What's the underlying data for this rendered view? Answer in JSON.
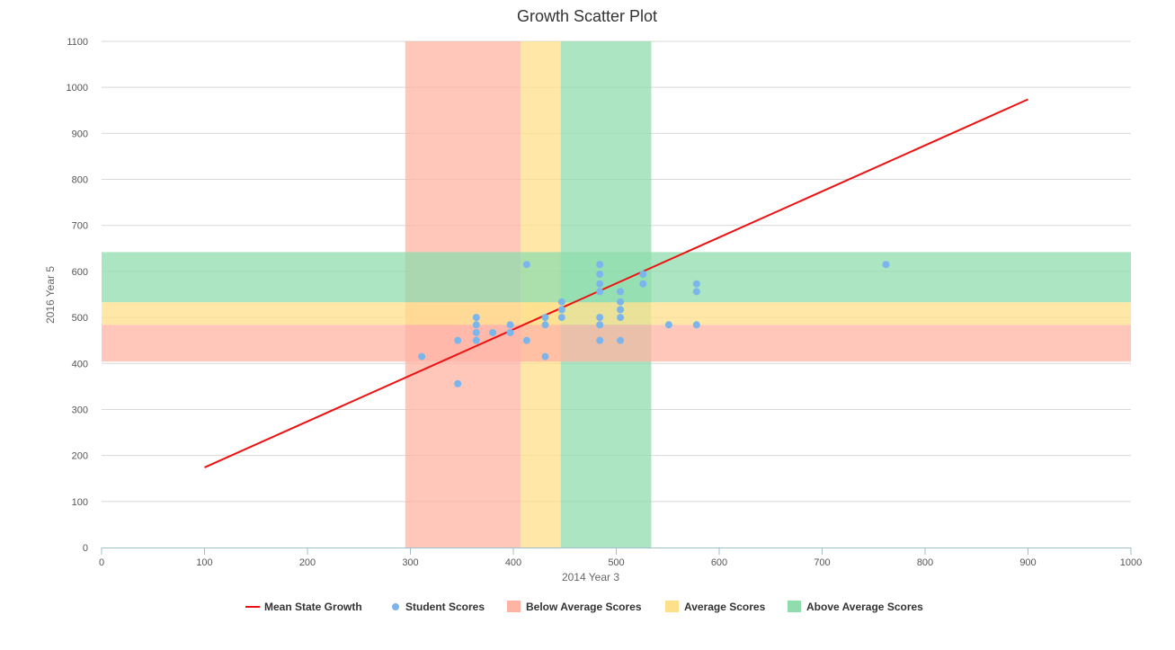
{
  "chart_data": {
    "type": "scatter",
    "title": "Growth Scatter Plot",
    "xlabel": "2014 Year 3",
    "ylabel": "2016 Year 5",
    "xlim": [
      0,
      1000
    ],
    "ylim": [
      0,
      1100
    ],
    "x_ticks": [
      0,
      100,
      200,
      300,
      400,
      500,
      600,
      700,
      800,
      900,
      1000
    ],
    "y_ticks": [
      0,
      100,
      200,
      300,
      400,
      500,
      600,
      700,
      800,
      900,
      1000,
      1100
    ],
    "grid": "horizontal",
    "legend_position": "bottom-center",
    "bands": [
      {
        "name": "Below Average Scores",
        "axis": "x",
        "from": 295,
        "to": 407,
        "color": "#ffb3a3"
      },
      {
        "name": "Average Scores",
        "axis": "x",
        "from": 407,
        "to": 446,
        "color": "#ffe08a"
      },
      {
        "name": "Above Average Scores",
        "axis": "x",
        "from": 446,
        "to": 534,
        "color": "#8fdcac"
      },
      {
        "name": "Below Average Scores",
        "axis": "y",
        "from": 404,
        "to": 484,
        "color": "#ffb3a3"
      },
      {
        "name": "Average Scores",
        "axis": "y",
        "from": 484,
        "to": 533,
        "color": "#ffe08a"
      },
      {
        "name": "Above Average Scores",
        "axis": "y",
        "from": 533,
        "to": 642,
        "color": "#8fdcac"
      }
    ],
    "series": [
      {
        "name": "Mean State Growth",
        "type": "line",
        "color": "#ee1111",
        "points": [
          [
            100,
            174
          ],
          [
            900,
            974
          ]
        ]
      },
      {
        "name": "Student Scores",
        "type": "scatter",
        "color": "#7cb5ec",
        "points": [
          [
            311,
            415
          ],
          [
            346,
            356
          ],
          [
            346,
            450
          ],
          [
            364,
            450
          ],
          [
            364,
            467
          ],
          [
            364,
            484
          ],
          [
            364,
            500
          ],
          [
            380,
            467
          ],
          [
            397,
            467
          ],
          [
            397,
            484
          ],
          [
            413,
            615
          ],
          [
            413,
            450
          ],
          [
            431,
            415
          ],
          [
            431,
            484
          ],
          [
            431,
            500
          ],
          [
            447,
            500
          ],
          [
            447,
            517
          ],
          [
            447,
            534
          ],
          [
            484,
            615
          ],
          [
            484,
            594
          ],
          [
            484,
            573
          ],
          [
            484,
            556
          ],
          [
            484,
            500
          ],
          [
            484,
            484
          ],
          [
            484,
            450
          ],
          [
            504,
            556
          ],
          [
            504,
            534
          ],
          [
            504,
            517
          ],
          [
            504,
            500
          ],
          [
            504,
            450
          ],
          [
            526,
            594
          ],
          [
            526,
            573
          ],
          [
            551,
            484
          ],
          [
            578,
            573
          ],
          [
            578,
            556
          ],
          [
            578,
            484
          ],
          [
            762,
            615
          ]
        ]
      }
    ],
    "legend": [
      {
        "label": "Mean State Growth",
        "symbol": "line",
        "color": "#ee1111"
      },
      {
        "label": "Student Scores",
        "symbol": "dot",
        "color": "#7cb5ec"
      },
      {
        "label": "Below Average Scores",
        "symbol": "rect",
        "color": "#ffb3a3"
      },
      {
        "label": "Average Scores",
        "symbol": "rect",
        "color": "#ffe08a"
      },
      {
        "label": "Above Average Scores",
        "symbol": "rect",
        "color": "#8fdcac"
      }
    ]
  }
}
